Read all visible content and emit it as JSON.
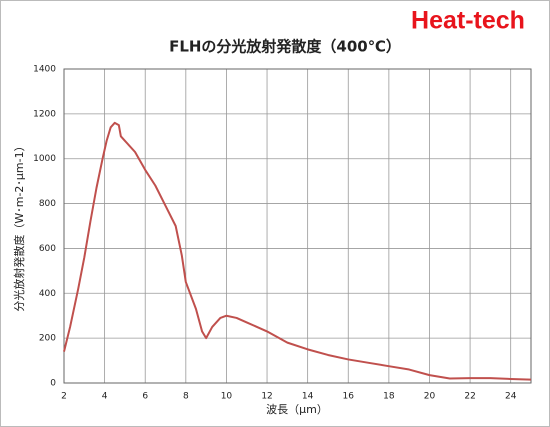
{
  "chart_data": {
    "type": "line",
    "logo": "Heat-tech",
    "title": "FLHの分光放射発散度（400℃）",
    "xlabel": "波長（μm）",
    "ylabel": "分光放射発散度（W･m-2･μm-1）",
    "xlim": [
      2,
      25
    ],
    "ylim": [
      0,
      1400
    ],
    "xticks": [
      2,
      4,
      6,
      8,
      10,
      12,
      14,
      16,
      18,
      20,
      22,
      24
    ],
    "yticks": [
      0,
      200,
      400,
      600,
      800,
      1000,
      1200,
      1400
    ],
    "grid": true,
    "series": [
      {
        "color": "#c0504d",
        "x": [
          2,
          2.3,
          2.7,
          3,
          3.3,
          3.6,
          3.9,
          4.1,
          4.3,
          4.5,
          4.7,
          4.8,
          5,
          5.5,
          6,
          6.5,
          7,
          7.5,
          7.8,
          8,
          8.5,
          8.8,
          9,
          9.3,
          9.7,
          10,
          10.5,
          11,
          12,
          13,
          14,
          15,
          16,
          17,
          18,
          19,
          20,
          21,
          22,
          23,
          24,
          25
        ],
        "values": [
          140,
          250,
          420,
          560,
          720,
          870,
          1000,
          1080,
          1140,
          1160,
          1150,
          1100,
          1080,
          1030,
          950,
          880,
          790,
          700,
          570,
          450,
          330,
          230,
          200,
          250,
          290,
          300,
          290,
          270,
          230,
          180,
          150,
          125,
          105,
          90,
          75,
          60,
          35,
          20,
          22,
          22,
          18,
          15
        ]
      }
    ]
  }
}
